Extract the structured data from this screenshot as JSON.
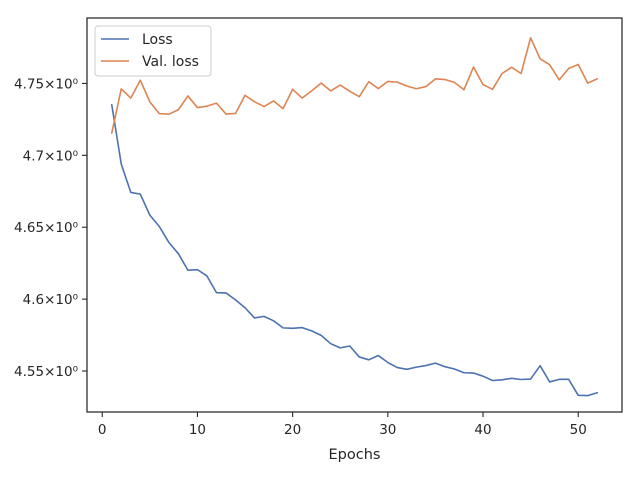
{
  "chart_data": {
    "type": "line",
    "xlabel": "Epochs",
    "ylabel": "",
    "xlim": [
      -1.6,
      54.6
    ],
    "ylim": [
      4.5215,
      4.7955
    ],
    "xticks": [
      0,
      10,
      20,
      30,
      40,
      50
    ],
    "xtick_labels": [
      "0",
      "10",
      "20",
      "30",
      "40",
      "50"
    ],
    "yticks": [
      4.55,
      4.6,
      4.65,
      4.7,
      4.75
    ],
    "ytick_labels": [
      "4.55×10⁰",
      "4.6×10⁰",
      "4.65×10⁰",
      "4.7×10⁰",
      "4.75×10⁰"
    ],
    "grid": false,
    "legend_position": "upper-left",
    "x": [
      1,
      2,
      3,
      4,
      5,
      6,
      7,
      8,
      9,
      10,
      11,
      12,
      13,
      14,
      15,
      16,
      17,
      18,
      19,
      20,
      21,
      22,
      23,
      24,
      25,
      26,
      27,
      28,
      29,
      30,
      31,
      32,
      33,
      34,
      35,
      36,
      37,
      38,
      39,
      40,
      41,
      42,
      43,
      44,
      45,
      46,
      47,
      48,
      49,
      50,
      51,
      52
    ],
    "series": [
      {
        "name": "Loss",
        "color": "#4c72b0",
        "values": [
          4.7352,
          4.6939,
          4.6742,
          4.673,
          4.6584,
          4.6505,
          4.6394,
          4.6316,
          4.6201,
          4.6205,
          4.6161,
          4.6045,
          4.6043,
          4.5995,
          4.594,
          4.5869,
          4.588,
          4.5849,
          4.58,
          4.5797,
          4.5802,
          4.5779,
          4.5748,
          4.569,
          4.5661,
          4.5674,
          4.5598,
          4.5578,
          4.5608,
          4.5559,
          4.5524,
          4.5512,
          4.5527,
          4.5538,
          4.5555,
          4.553,
          4.5514,
          4.5488,
          4.5486,
          4.5464,
          4.5434,
          4.5439,
          4.5449,
          4.5441,
          4.5444,
          4.5537,
          4.5424,
          4.5442,
          4.5442,
          4.5331,
          4.5329,
          4.5349
        ]
      },
      {
        "name": "Val. loss",
        "color": "#dd8452",
        "values": [
          4.7155,
          4.7462,
          4.7398,
          4.7522,
          4.7372,
          4.729,
          4.7286,
          4.7317,
          4.7413,
          4.7332,
          4.7342,
          4.7363,
          4.7287,
          4.7291,
          4.7417,
          4.7372,
          4.7339,
          4.7378,
          4.7325,
          4.7459,
          4.7398,
          4.7448,
          4.7502,
          4.7448,
          4.7489,
          4.7445,
          4.7408,
          4.7512,
          4.7464,
          4.7514,
          4.7509,
          4.7482,
          4.7463,
          4.7478,
          4.7532,
          4.7527,
          4.7507,
          4.7456,
          4.7614,
          4.7492,
          4.7459,
          4.7569,
          4.7612,
          4.7569,
          4.7817,
          4.7671,
          4.763,
          4.7525,
          4.7604,
          4.7632,
          4.7502,
          4.7532
        ]
      }
    ]
  }
}
